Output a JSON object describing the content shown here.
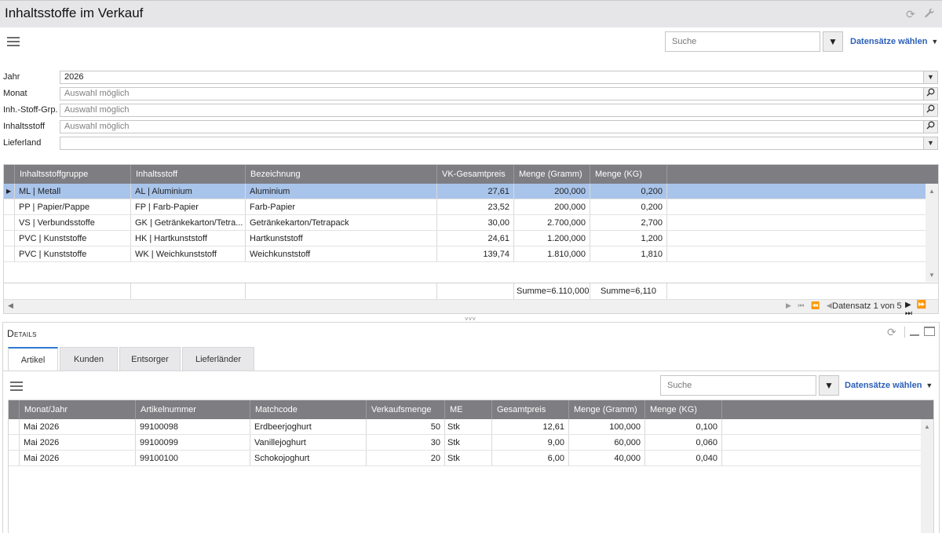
{
  "header": {
    "title": "Inhaltsstoffe im Verkauf"
  },
  "toolbar": {
    "search_placeholder": "Suche",
    "datasets_label": "Datensätze wählen"
  },
  "filters": [
    {
      "label": "Jahr",
      "value": "2026",
      "placeholder": "",
      "control": "dropdown"
    },
    {
      "label": "Monat",
      "value": "",
      "placeholder": "Auswahl möglich",
      "control": "lookup"
    },
    {
      "label": "Inh.-Stoff-Grp.",
      "value": "",
      "placeholder": "Auswahl möglich",
      "control": "lookup"
    },
    {
      "label": "Inhaltsstoff",
      "value": "",
      "placeholder": "Auswahl möglich",
      "control": "lookup"
    },
    {
      "label": "Lieferland",
      "value": "",
      "placeholder": "",
      "control": "dropdown"
    }
  ],
  "main_grid": {
    "columns": [
      "Inhaltsstoffgruppe",
      "Inhaltsstoff",
      "Bezeichnung",
      "VK-Gesamtpreis",
      "Menge (Gramm)",
      "Menge (KG)"
    ],
    "rows": [
      [
        "ML | Metall",
        "AL | Aluminium",
        "Aluminium",
        "27,61",
        "200,000",
        "0,200"
      ],
      [
        "PP | Papier/Pappe",
        "FP | Farb-Papier",
        "Farb-Papier",
        "23,52",
        "200,000",
        "0,200"
      ],
      [
        "VS | Verbundsstoffe",
        "GK | Getränkekarton/Tetra...",
        "Getränkekarton/Tetrapack",
        "30,00",
        "2.700,000",
        "2,700"
      ],
      [
        "PVC | Kunststoffe",
        "HK | Hartkunststoff",
        "Hartkunststoff",
        "24,61",
        "1.200,000",
        "1,200"
      ],
      [
        "PVC | Kunststoffe",
        "WK | Weichkunststoff",
        "Weichkunststoff",
        "139,74",
        "1.810,000",
        "1,810"
      ]
    ],
    "selected_row": 0,
    "summary": {
      "gramm": "Summe=6.110,000",
      "kg": "Summe=6,110"
    },
    "pager": "Datensatz 1 von 5"
  },
  "details": {
    "title": "Details",
    "tabs": [
      "Artikel",
      "Kunden",
      "Entsorger",
      "Lieferländer"
    ],
    "active_tab": 0,
    "search_placeholder": "Suche",
    "datasets_label": "Datensätze wählen",
    "grid": {
      "columns": [
        "Monat/Jahr",
        "Artikelnummer",
        "Matchcode",
        "Verkaufsmenge",
        "ME",
        "Gesamtpreis",
        "Menge (Gramm)",
        "Menge (KG)"
      ],
      "rows": [
        [
          "Mai 2026",
          "99100098",
          "Erdbeerjoghurt",
          "50",
          "Stk",
          "12,61",
          "100,000",
          "0,100"
        ],
        [
          "Mai 2026",
          "99100099",
          "Vanillejoghurt",
          "30",
          "Stk",
          "9,00",
          "60,000",
          "0,060"
        ],
        [
          "Mai 2026",
          "99100100",
          "Schokojoghurt",
          "20",
          "Stk",
          "6,00",
          "40,000",
          "0,040"
        ]
      ]
    }
  },
  "icons": {
    "refresh": "refresh-icon",
    "wrench": "wrench-icon",
    "menu": "menu-icon",
    "filter": "filter-icon",
    "search": "magnifier-icon",
    "minimize": "minimize-icon",
    "maximize": "maximize-icon"
  }
}
